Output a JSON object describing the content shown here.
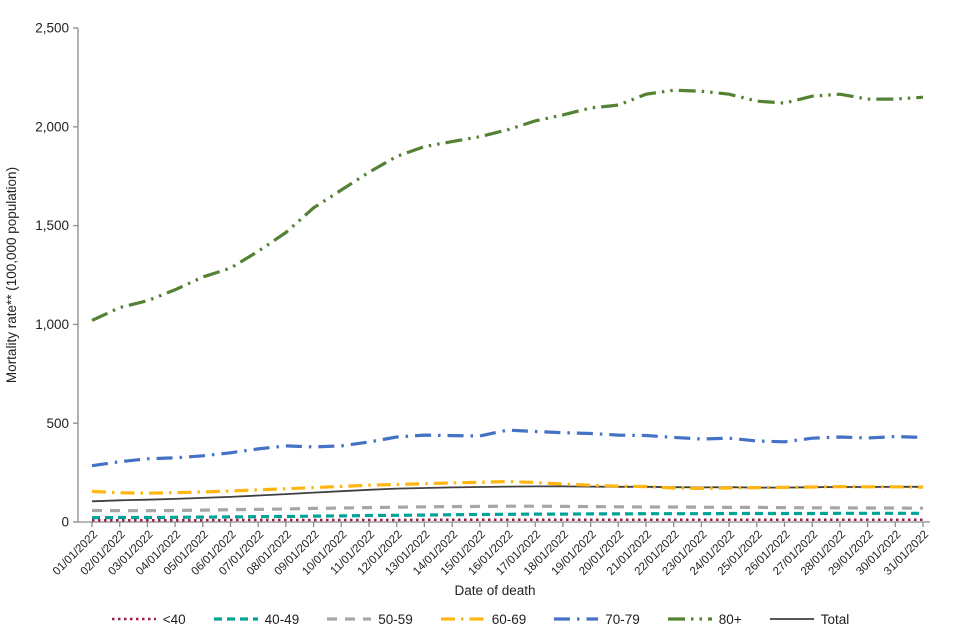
{
  "page": {
    "background": "#FFFFFF"
  },
  "chart_data": {
    "type": "line",
    "title": "",
    "xlabel": "Date of death",
    "ylabel": "Mortality rate** (100,000 population)",
    "ylim": [
      0,
      2500
    ],
    "grid": false,
    "legend_position": "bottom",
    "axis_color": "#8c8c8c",
    "text_color": "#1f1f1f",
    "yticks": [
      {
        "value": 0,
        "label": "0"
      },
      {
        "value": 500,
        "label": "500"
      },
      {
        "value": 1000,
        "label": "1,000"
      },
      {
        "value": 1500,
        "label": "1,500"
      },
      {
        "value": 2000,
        "label": "2,000"
      },
      {
        "value": 2500,
        "label": "2,500"
      }
    ],
    "categories": [
      "01/01/2022",
      "02/01/2022",
      "03/01/2022",
      "04/01/2022",
      "05/01/2022",
      "06/01/2022",
      "07/01/2022",
      "08/01/2022",
      "09/01/2022",
      "10/01/2022",
      "11/01/2022",
      "12/01/2022",
      "13/01/2022",
      "14/01/2022",
      "15/01/2022",
      "16/01/2022",
      "17/01/2022",
      "18/01/2022",
      "19/01/2022",
      "20/01/2022",
      "21/01/2022",
      "22/01/2022",
      "23/01/2022",
      "24/01/2022",
      "25/01/2022",
      "26/01/2022",
      "27/01/2022",
      "28/01/2022",
      "29/01/2022",
      "30/01/2022",
      "31/01/2022"
    ],
    "series": [
      {
        "name": "<40",
        "color": "#9E1F3F",
        "dash": "2.5 3.5",
        "width": 2.5,
        "values": [
          9,
          9,
          9,
          9,
          9,
          10,
          10,
          10,
          10,
          10,
          10,
          10,
          11,
          11,
          11,
          11,
          11,
          11,
          11,
          11,
          11,
          11,
          11,
          11,
          11,
          11,
          11,
          11,
          11,
          11,
          11
        ]
      },
      {
        "name": "40-49",
        "color": "#00A398",
        "dash": "8 5",
        "width": 3.2,
        "values": [
          22,
          23,
          23,
          24,
          25,
          26,
          27,
          28,
          30,
          31,
          33,
          34,
          35,
          37,
          38,
          39,
          40,
          40,
          41,
          41,
          42,
          42,
          42,
          43,
          43,
          43,
          43,
          44,
          44,
          44,
          44
        ]
      },
      {
        "name": "50-59",
        "color": "#A6A6A6",
        "dash": "10 8",
        "width": 3.2,
        "values": [
          58,
          57,
          57,
          58,
          60,
          62,
          64,
          66,
          69,
          71,
          73,
          75,
          77,
          78,
          79,
          80,
          80,
          79,
          78,
          77,
          76,
          76,
          75,
          74,
          74,
          73,
          72,
          72,
          71,
          71,
          70
        ]
      },
      {
        "name": "60-69",
        "color": "#FFB612",
        "dash": "14 6 2.5 6",
        "width": 3.2,
        "values": [
          155,
          148,
          146,
          149,
          152,
          157,
          163,
          168,
          174,
          180,
          186,
          190,
          194,
          198,
          201,
          205,
          200,
          192,
          186,
          181,
          179,
          172,
          170,
          172,
          174,
          175,
          177,
          179,
          178,
          178,
          176
        ]
      },
      {
        "name": "70-79",
        "color": "#4472C4",
        "dash": "16 7 2.5 7",
        "width": 3.2,
        "values": [
          285,
          305,
          320,
          325,
          335,
          350,
          370,
          385,
          380,
          385,
          405,
          430,
          440,
          437,
          435,
          465,
          458,
          452,
          448,
          440,
          438,
          428,
          420,
          424,
          410,
          406,
          424,
          430,
          425,
          432,
          428
        ]
      },
      {
        "name": "80+",
        "color": "#548235",
        "dash": "17 6 2.5 6 2.5 6",
        "width": 3.2,
        "values": [
          1020,
          1085,
          1120,
          1175,
          1240,
          1285,
          1370,
          1465,
          1590,
          1680,
          1770,
          1850,
          1900,
          1925,
          1950,
          1985,
          2030,
          2060,
          2095,
          2110,
          2165,
          2185,
          2180,
          2165,
          2130,
          2120,
          2155,
          2165,
          2140,
          2140,
          2150
        ]
      },
      {
        "name": "Total",
        "color": "#404040",
        "dash": "",
        "width": 1.8,
        "values": [
          105,
          110,
          113,
          117,
          122,
          127,
          134,
          141,
          149,
          156,
          163,
          169,
          172,
          175,
          177,
          179,
          180,
          180,
          179,
          178,
          178,
          176,
          175,
          176,
          174,
          174,
          176,
          177,
          177,
          178,
          178
        ]
      }
    ]
  }
}
